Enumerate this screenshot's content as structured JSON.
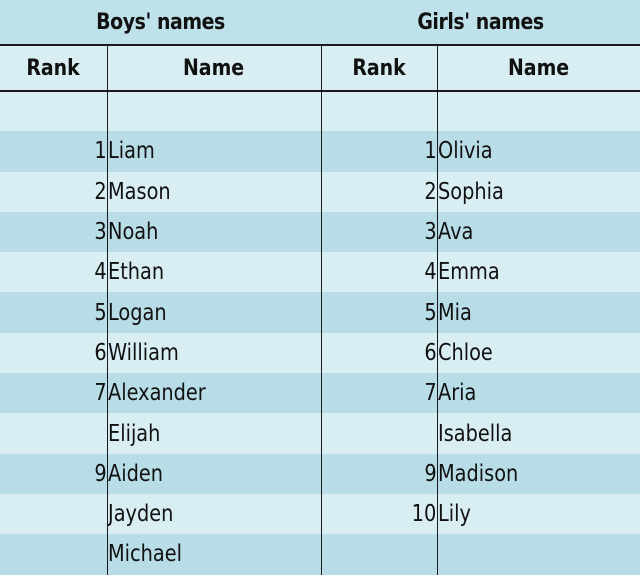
{
  "groups": {
    "boys": "Boys' names",
    "girls": "Girls' names"
  },
  "columns": {
    "rank": "Rank",
    "name": "Name"
  },
  "rows": [
    {
      "boy_rank": "",
      "boy_name": "",
      "girl_rank": "",
      "girl_name": ""
    },
    {
      "boy_rank": "1",
      "boy_name": "Liam",
      "girl_rank": "1",
      "girl_name": "Olivia"
    },
    {
      "boy_rank": "2",
      "boy_name": "Mason",
      "girl_rank": "2",
      "girl_name": "Sophia"
    },
    {
      "boy_rank": "3",
      "boy_name": "Noah",
      "girl_rank": "3",
      "girl_name": "Ava"
    },
    {
      "boy_rank": "4",
      "boy_name": "Ethan",
      "girl_rank": "4",
      "girl_name": "Emma"
    },
    {
      "boy_rank": "5",
      "boy_name": "Logan",
      "girl_rank": "5",
      "girl_name": "Mia"
    },
    {
      "boy_rank": "6",
      "boy_name": "William",
      "girl_rank": "6",
      "girl_name": "Chloe"
    },
    {
      "boy_rank": "7",
      "boy_name": "Alexander",
      "girl_rank": "7",
      "girl_name": "Aria"
    },
    {
      "boy_rank": "",
      "boy_name": "Elijah",
      "girl_rank": "",
      "girl_name": "Isabella"
    },
    {
      "boy_rank": "9",
      "boy_name": "Aiden",
      "girl_rank": "9",
      "girl_name": "Madison"
    },
    {
      "boy_rank": "",
      "boy_name": "Jayden",
      "girl_rank": "10",
      "girl_name": "Lily"
    },
    {
      "boy_rank": "",
      "boy_name": "Michael",
      "girl_rank": "",
      "girl_name": ""
    }
  ],
  "colors": {
    "row_light": "#d9eef2",
    "row_dark": "#b8dde6",
    "header": "#bfe1e9",
    "rule": "#1a1a1a"
  }
}
